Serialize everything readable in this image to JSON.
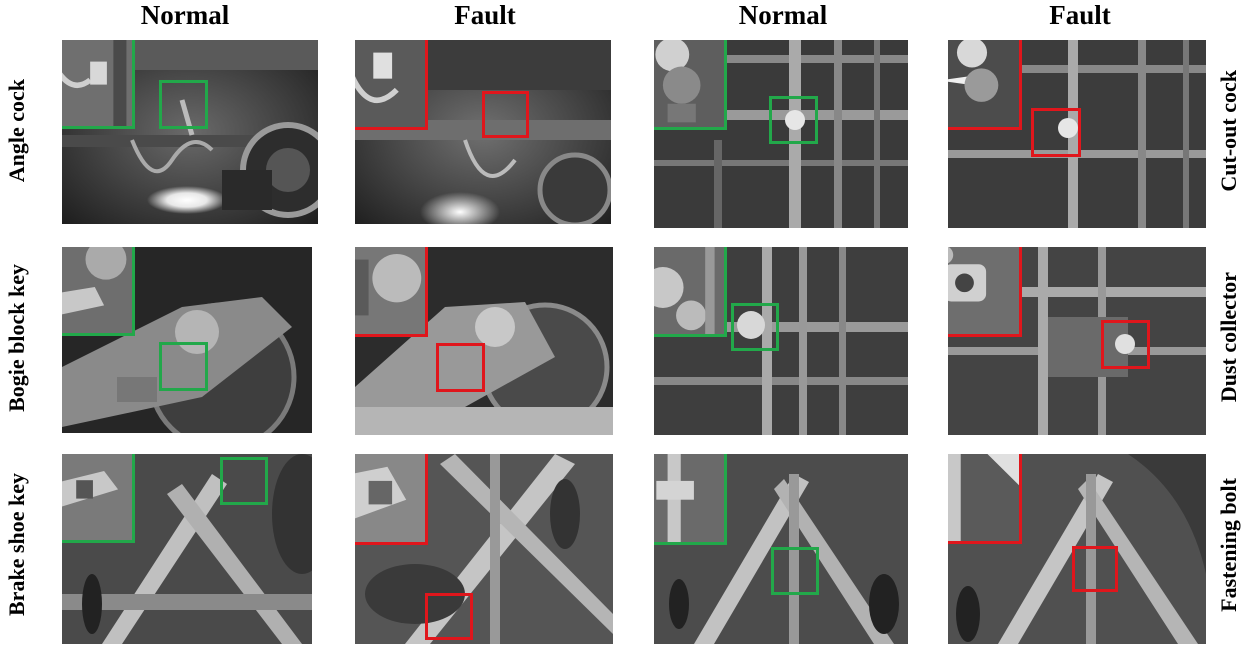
{
  "columns": [
    {
      "label": "Normal",
      "state": "normal"
    },
    {
      "label": "Fault",
      "state": "fault"
    },
    {
      "label": "Normal",
      "state": "normal"
    },
    {
      "label": "Fault",
      "state": "fault"
    }
  ],
  "left_rows": [
    "Angle cock",
    "Bogie block key",
    "Brake shoe key"
  ],
  "right_rows": [
    "Cut-out cock",
    "Dust collector",
    "Fastening bolt"
  ],
  "colors": {
    "normal": "#22a84a",
    "fault": "#e0161c"
  },
  "panels": [
    {
      "row": 0,
      "col": 0,
      "component": "Angle cock",
      "state": "normal"
    },
    {
      "row": 0,
      "col": 1,
      "component": "Angle cock",
      "state": "fault"
    },
    {
      "row": 0,
      "col": 2,
      "component": "Cut-out cock",
      "state": "normal"
    },
    {
      "row": 0,
      "col": 3,
      "component": "Cut-out cock",
      "state": "fault"
    },
    {
      "row": 1,
      "col": 0,
      "component": "Bogie block key",
      "state": "normal"
    },
    {
      "row": 1,
      "col": 1,
      "component": "Bogie block key",
      "state": "fault"
    },
    {
      "row": 1,
      "col": 2,
      "component": "Dust collector",
      "state": "normal"
    },
    {
      "row": 1,
      "col": 3,
      "component": "Dust collector",
      "state": "fault"
    },
    {
      "row": 2,
      "col": 0,
      "component": "Brake shoe key",
      "state": "normal"
    },
    {
      "row": 2,
      "col": 1,
      "component": "Brake shoe key",
      "state": "fault"
    },
    {
      "row": 2,
      "col": 2,
      "component": "Fastening bolt",
      "state": "normal"
    },
    {
      "row": 2,
      "col": 3,
      "component": "Fastening bolt",
      "state": "fault"
    }
  ]
}
